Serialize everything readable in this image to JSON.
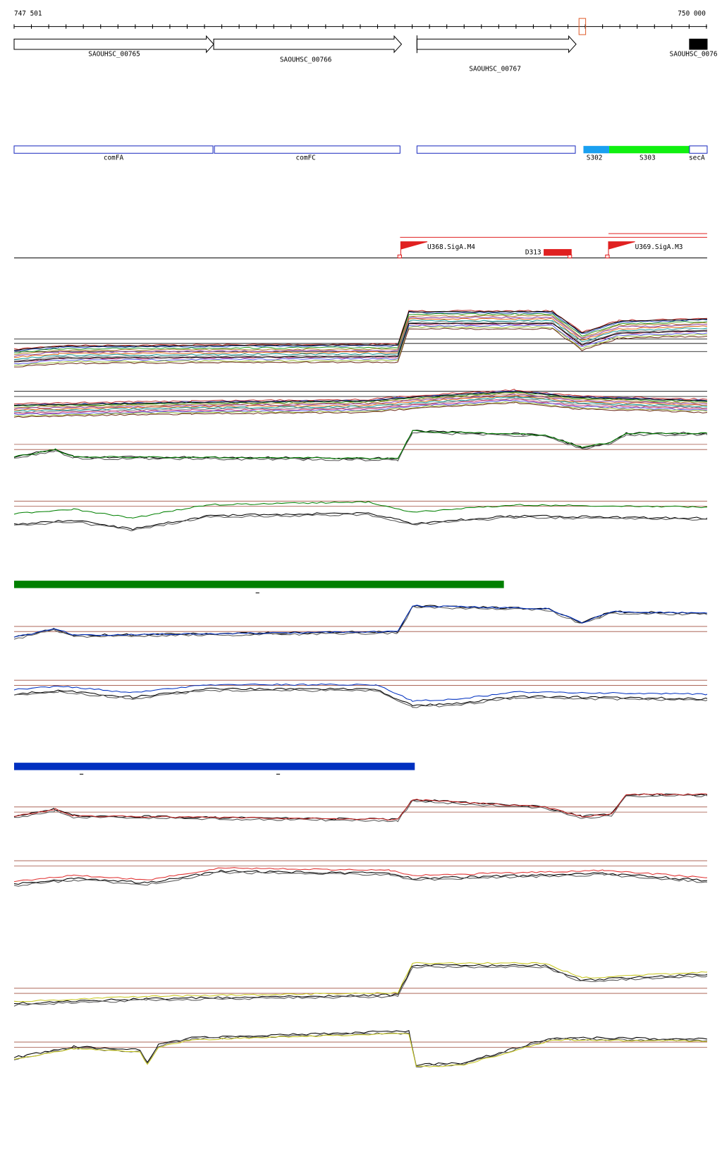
{
  "ruler": {
    "start": "747 501",
    "end": "750 000"
  },
  "genes": [
    "SAOUHSC_00765",
    "SAOUHSC_00766",
    "SAOUHSC_00767",
    "SAOUHSC_0076"
  ],
  "operons": [
    "comFA",
    "comFC",
    "S302",
    "S303",
    "secA"
  ],
  "promoters": [
    "U368.SigA.M4",
    "D313",
    "U369.SigA.M3"
  ]
}
